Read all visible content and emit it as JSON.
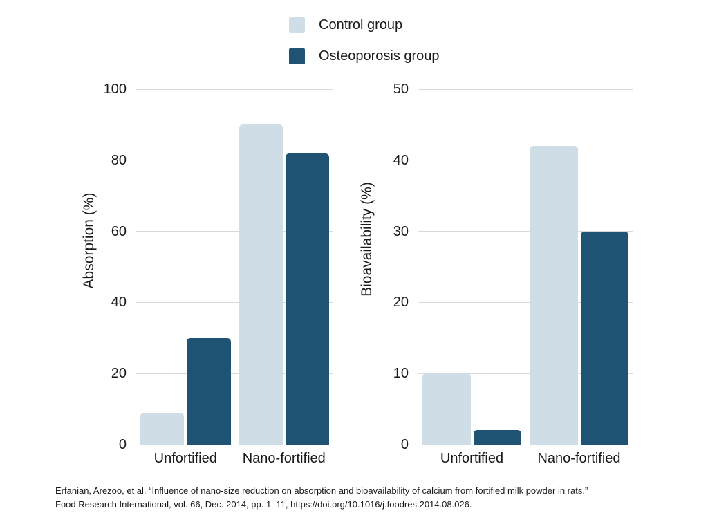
{
  "legend": {
    "items": [
      {
        "id": "control",
        "label": "Control group",
        "color": "#cfdde6"
      },
      {
        "id": "osteoporosis",
        "label": "Osteoporosis group",
        "color": "#1e5374"
      }
    ],
    "position": "top-center"
  },
  "chart_data": [
    {
      "id": "absorption",
      "type": "bar",
      "title": "",
      "ylabel": "Absorption (%)",
      "xlabel": "",
      "categories": [
        "Unfortified",
        "Nano-fortified"
      ],
      "series": [
        {
          "name": "Control group",
          "color": "#cfdde6",
          "values": [
            9,
            90
          ]
        },
        {
          "name": "Osteoporosis group",
          "color": "#1e5374",
          "values": [
            30,
            82
          ]
        }
      ],
      "ylim": [
        0,
        100
      ],
      "yticks": [
        0,
        20,
        40,
        60,
        80,
        100
      ],
      "grid": true
    },
    {
      "id": "bioavailability",
      "type": "bar",
      "title": "",
      "ylabel": "Bioavailability (%)",
      "xlabel": "",
      "categories": [
        "Unfortified",
        "Nano-fortified"
      ],
      "series": [
        {
          "name": "Control group",
          "color": "#cfdde6",
          "values": [
            10,
            42
          ]
        },
        {
          "name": "Osteoporosis group",
          "color": "#1e5374",
          "values": [
            2,
            30
          ]
        }
      ],
      "ylim": [
        0,
        50
      ],
      "yticks": [
        0,
        10,
        20,
        30,
        40,
        50
      ],
      "grid": true
    }
  ],
  "footer": {
    "citation_line1": "Erfanian, Arezoo, et al. “Influence of nano-size reduction on absorption and bioavailability of calcium from fortified milk powder in rats.”",
    "citation_line2": "Food Research International, vol. 66, Dec. 2014, pp. 1–11, https://doi.org/10.1016/j.foodres.2014.08.026."
  },
  "colors": {
    "control_series": "#cfdde6",
    "osteoporosis_series": "#1e5374",
    "gridline": "#d9d9d9",
    "text": "#1a1a1a",
    "background": "#ffffff"
  }
}
